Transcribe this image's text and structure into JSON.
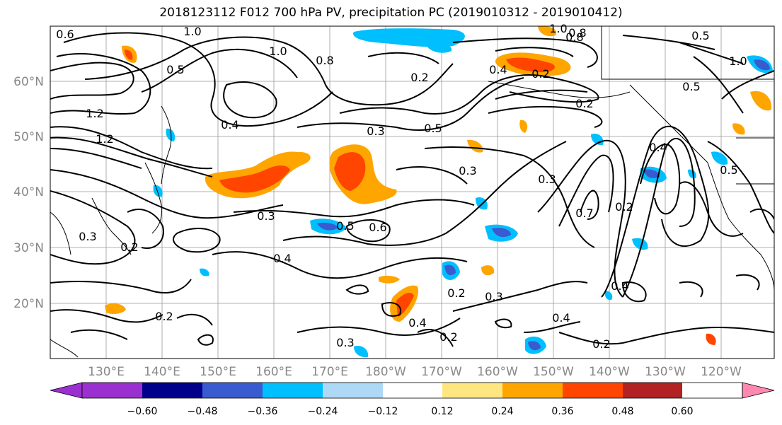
{
  "title": "2018123112 F012 700 hPa PV, precipitation PC (2019010312 - 2019010412)",
  "lat_labels": [
    "60°N",
    "50°N",
    "40°N",
    "30°N",
    "20°N"
  ],
  "lon_labels": [
    "130°E",
    "140°E",
    "150°E",
    "160°E",
    "170°E",
    "180°W",
    "170°W",
    "160°W",
    "150°W",
    "140°W",
    "130°W",
    "120°W"
  ],
  "contour_labels": [
    "0.6",
    "1.0",
    "1.0",
    "0.8",
    "0.5",
    "1.2",
    "1.2",
    "0.4",
    "0.3",
    "0.5",
    "0.3",
    "0.3",
    "0.6",
    "0.5",
    "0.2",
    "0.4",
    "0.2",
    "0.4",
    "0.2",
    "0.3",
    "0.2",
    "0.3",
    "0.4",
    "0.3",
    "0.2",
    "0.2",
    "0.4",
    "0.7",
    "0.2",
    "0.5",
    "0.4",
    "0.5",
    "1.0",
    "0.8",
    "1.0",
    "0.5",
    "0.4",
    "0.2",
    "0.2",
    "0.8",
    "0.3"
  ],
  "colorbar": {
    "colors": [
      "#9b30d0",
      "#00008b",
      "#3a5bd0",
      "#00bfff",
      "#add8f6",
      "#ffffff",
      "#ffe680",
      "#ffa500",
      "#ff4500",
      "#b22222",
      "#ff88b0"
    ],
    "ticks": [
      "−0.60",
      "−0.48",
      "−0.36",
      "−0.24",
      "−0.12",
      "0.12",
      "0.24",
      "0.36",
      "0.48",
      "0.60"
    ]
  }
}
